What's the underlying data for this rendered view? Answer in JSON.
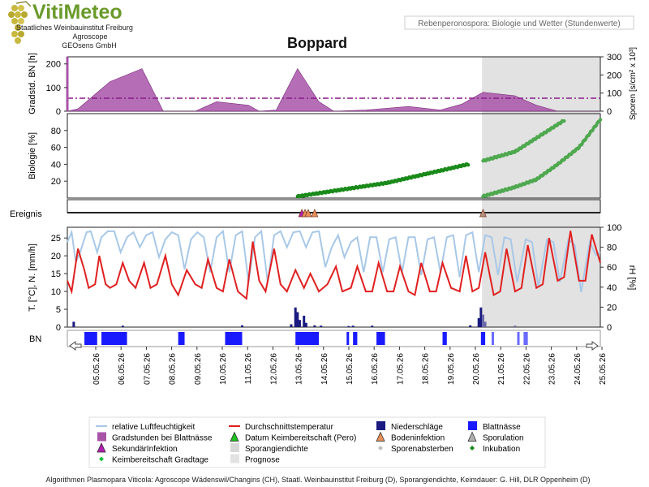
{
  "header": {
    "logo_title": "VitiMeteo",
    "institute_line1": "Staatliches Weinbauinstitut Freiburg",
    "institute_line2": "Agroscope",
    "institute_line3": "GEOsens GmbH",
    "subtitle_box": "Rebenperonospora: Biologie und Wetter (Stundenwerte)",
    "title": "Boppard"
  },
  "footer_credit": "Algorithmen Plasmopara Viticola: Agroscope Wädenswil/Changins (CH), Staatl. Weinbauinstitut Freiburg (D), Sporangiendichte, Keimdauer: G. Hill, DLR Oppenheim (D)",
  "colors": {
    "gradstunden": "#a855a8",
    "threshold": "#8a1a8a",
    "biology_green": "#1a8a1a",
    "biology_forecast_green": "#4fa84f",
    "temperature": "#e02020",
    "humidity": "#a8c8e8",
    "precip": "#1a1a80",
    "leaf_wetness": "#1a1aff",
    "prognose_shade": "#e2e2e2",
    "event_orange": "#e8905a",
    "event_grey": "#b89080"
  },
  "chart_data": [
    {
      "panel": "gradstunden",
      "type": "area",
      "ylabel": "Gradstd. BN [h]",
      "ylabel_right": "Sporen [s/cm² x 10³]",
      "ylim": [
        0,
        230
      ],
      "yticks": [
        0,
        100,
        200
      ],
      "ylim_right": [
        0,
        300
      ],
      "yticks_right": [
        0,
        100,
        200,
        300
      ],
      "threshold_line": 55,
      "points": [
        [
          0,
          0
        ],
        [
          0.5,
          10
        ],
        [
          2,
          125
        ],
        [
          3.5,
          180
        ],
        [
          4.5,
          0
        ],
        [
          6,
          0
        ],
        [
          7,
          40
        ],
        [
          8.5,
          25
        ],
        [
          9,
          0
        ],
        [
          9.8,
          5
        ],
        [
          10.8,
          180
        ],
        [
          11.8,
          40
        ],
        [
          12.5,
          0
        ],
        [
          14,
          5
        ],
        [
          16,
          20
        ],
        [
          17.5,
          5
        ],
        [
          18.5,
          30
        ],
        [
          19.5,
          80
        ],
        [
          21,
          65
        ],
        [
          22,
          25
        ],
        [
          23,
          0
        ],
        [
          24,
          0
        ],
        [
          25,
          0
        ]
      ]
    },
    {
      "panel": "biologie",
      "type": "scatter",
      "ylabel": "Biologie [%]",
      "ylim": [
        0,
        100
      ],
      "yticks": [
        20,
        40,
        60,
        80
      ],
      "series": [
        {
          "segment": [
            [
              10.8,
              2
            ],
            [
              15,
              18
            ],
            [
              18.8,
              40
            ]
          ]
        },
        {
          "segment": [
            [
              19.5,
              44
            ],
            [
              21,
              55
            ],
            [
              23.3,
              92
            ]
          ]
        },
        {
          "segment": [
            [
              19.5,
              2
            ],
            [
              21,
              13
            ],
            [
              22,
              22
            ],
            [
              23,
              40
            ],
            [
              24,
              60
            ],
            [
              25,
              93
            ]
          ]
        }
      ]
    },
    {
      "panel": "ereignis",
      "label": "Ereignis",
      "events": [
        {
          "x": 11.0,
          "type": "sekundaer"
        },
        {
          "x": 11.15,
          "type": "datum"
        },
        {
          "x": 11.3,
          "type": "boden"
        },
        {
          "x": 11.6,
          "type": "boden"
        },
        {
          "x": 19.5,
          "type": "boden"
        }
      ]
    },
    {
      "panel": "wetter",
      "type": "line",
      "ylabel": "T. [°C], N. [mm/h]",
      "ylabel_right": "rH [%]",
      "ylim": [
        0,
        28
      ],
      "yticks": [
        0,
        5,
        10,
        15,
        20,
        25
      ],
      "ylim_right": [
        0,
        100
      ],
      "yticks_right": [
        0,
        20,
        40,
        60,
        80,
        100
      ],
      "temperature": [
        [
          0,
          13
        ],
        [
          0.2,
          10
        ],
        [
          0.5,
          22
        ],
        [
          0.8,
          16
        ],
        [
          1,
          11
        ],
        [
          1.3,
          12
        ],
        [
          1.5,
          20
        ],
        [
          1.8,
          12
        ],
        [
          2,
          11
        ],
        [
          2.3,
          12
        ],
        [
          2.6,
          18
        ],
        [
          2.9,
          13
        ],
        [
          3.2,
          11
        ],
        [
          3.6,
          18
        ],
        [
          3.9,
          11
        ],
        [
          4.2,
          12
        ],
        [
          4.6,
          20
        ],
        [
          4.9,
          12
        ],
        [
          5.2,
          9
        ],
        [
          5.6,
          16
        ],
        [
          6,
          12
        ],
        [
          6.3,
          11
        ],
        [
          6.6,
          19
        ],
        [
          7,
          11
        ],
        [
          7.3,
          10
        ],
        [
          7.6,
          19
        ],
        [
          8,
          10
        ],
        [
          8.4,
          8
        ],
        [
          8.7,
          24
        ],
        [
          9,
          13
        ],
        [
          9.3,
          10
        ],
        [
          9.7,
          22
        ],
        [
          10,
          12
        ],
        [
          10.3,
          10
        ],
        [
          10.7,
          16
        ],
        [
          11.1,
          11
        ],
        [
          11.4,
          15
        ],
        [
          11.8,
          10
        ],
        [
          12.2,
          12
        ],
        [
          12.6,
          17
        ],
        [
          12.9,
          10
        ],
        [
          13.3,
          11
        ],
        [
          13.6,
          17
        ],
        [
          14,
          10
        ],
        [
          14.3,
          10
        ],
        [
          14.6,
          18
        ],
        [
          15,
          10
        ],
        [
          15.3,
          10
        ],
        [
          15.6,
          17
        ],
        [
          16,
          10
        ],
        [
          16.3,
          9
        ],
        [
          16.6,
          18
        ],
        [
          17,
          10
        ],
        [
          17.3,
          10
        ],
        [
          17.6,
          18
        ],
        [
          18,
          11
        ],
        [
          18.4,
          10
        ],
        [
          18.7,
          20
        ],
        [
          19,
          10
        ],
        [
          19.3,
          11
        ],
        [
          19.6,
          21
        ],
        [
          20,
          9
        ],
        [
          20.3,
          10
        ],
        [
          20.6,
          22
        ],
        [
          21,
          10
        ],
        [
          21.3,
          11
        ],
        [
          21.6,
          23
        ],
        [
          22,
          11
        ],
        [
          22.3,
          12
        ],
        [
          22.6,
          25
        ],
        [
          23,
          13
        ],
        [
          23.3,
          14
        ],
        [
          23.6,
          27
        ],
        [
          24,
          13
        ],
        [
          24.3,
          13
        ],
        [
          24.6,
          26
        ],
        [
          25,
          18
        ]
      ],
      "humidity": [
        [
          0,
          85
        ],
        [
          0.2,
          95
        ],
        [
          0.4,
          65
        ],
        [
          0.6,
          75
        ],
        [
          0.9,
          95
        ],
        [
          1.1,
          96
        ],
        [
          1.4,
          75
        ],
        [
          1.6,
          90
        ],
        [
          1.9,
          96
        ],
        [
          2.2,
          96
        ],
        [
          2.5,
          75
        ],
        [
          2.8,
          90
        ],
        [
          3.1,
          95
        ],
        [
          3.4,
          80
        ],
        [
          3.7,
          92
        ],
        [
          4,
          95
        ],
        [
          4.3,
          70
        ],
        [
          4.6,
          88
        ],
        [
          4.9,
          95
        ],
        [
          5.2,
          92
        ],
        [
          5.5,
          58
        ],
        [
          5.8,
          88
        ],
        [
          6.1,
          95
        ],
        [
          6.4,
          90
        ],
        [
          6.7,
          55
        ],
        [
          7,
          90
        ],
        [
          7.3,
          96
        ],
        [
          7.6,
          55
        ],
        [
          7.9,
          92
        ],
        [
          8.2,
          96
        ],
        [
          8.5,
          45
        ],
        [
          8.8,
          90
        ],
        [
          9.1,
          96
        ],
        [
          9.4,
          45
        ],
        [
          9.7,
          92
        ],
        [
          10,
          96
        ],
        [
          10.3,
          80
        ],
        [
          10.6,
          95
        ],
        [
          10.9,
          96
        ],
        [
          11.2,
          80
        ],
        [
          11.5,
          95
        ],
        [
          11.8,
          96
        ],
        [
          12.1,
          60
        ],
        [
          12.4,
          80
        ],
        [
          12.7,
          92
        ],
        [
          13,
          70
        ],
        [
          13.3,
          85
        ],
        [
          13.6,
          90
        ],
        [
          13.9,
          55
        ],
        [
          14.2,
          90
        ],
        [
          14.5,
          90
        ],
        [
          14.8,
          55
        ],
        [
          15.1,
          88
        ],
        [
          15.4,
          90
        ],
        [
          15.7,
          55
        ],
        [
          16,
          90
        ],
        [
          16.3,
          90
        ],
        [
          16.6,
          52
        ],
        [
          16.9,
          88
        ],
        [
          17.2,
          90
        ],
        [
          17.5,
          55
        ],
        [
          17.8,
          90
        ],
        [
          18.1,
          92
        ],
        [
          18.4,
          50
        ],
        [
          18.7,
          92
        ],
        [
          19,
          95
        ],
        [
          19.3,
          55
        ],
        [
          19.6,
          92
        ],
        [
          19.9,
          90
        ],
        [
          20.2,
          52
        ],
        [
          20.5,
          90
        ],
        [
          20.8,
          88
        ],
        [
          21.1,
          45
        ],
        [
          21.5,
          88
        ],
        [
          21.8,
          85
        ],
        [
          22.1,
          40
        ],
        [
          22.5,
          88
        ],
        [
          22.8,
          85
        ],
        [
          23.1,
          45
        ],
        [
          23.5,
          88
        ],
        [
          23.8,
          82
        ],
        [
          24.1,
          35
        ],
        [
          24.5,
          85
        ],
        [
          24.8,
          72
        ],
        [
          25,
          75
        ]
      ],
      "precip": [
        [
          0.3,
          1.5
        ],
        [
          2.6,
          0.4
        ],
        [
          8.2,
          0.5
        ],
        [
          10.5,
          0.8
        ],
        [
          10.7,
          5.5
        ],
        [
          10.8,
          4.2
        ],
        [
          10.9,
          2
        ],
        [
          11.1,
          3.2
        ],
        [
          11.2,
          1.2
        ],
        [
          11.6,
          0.5
        ],
        [
          11.9,
          0.4
        ],
        [
          13.2,
          0.3
        ],
        [
          13.4,
          0.4
        ],
        [
          14.3,
          0.4
        ],
        [
          18.9,
          0.5
        ],
        [
          19.3,
          2.5
        ],
        [
          19.4,
          5.5
        ],
        [
          19.5,
          3.5
        ],
        [
          19.6,
          1.5
        ],
        [
          21,
          0.4
        ]
      ]
    },
    {
      "panel": "blattnaesse",
      "label": "BN",
      "segments": [
        [
          0.8,
          1.4
        ],
        [
          1.6,
          2.8
        ],
        [
          5.2,
          5.5
        ],
        [
          7.4,
          8.2
        ],
        [
          10.7,
          11.8
        ],
        [
          13.1,
          13.2
        ],
        [
          13.4,
          13.6
        ],
        [
          14.5,
          14.9
        ],
        [
          17.6,
          17.8
        ],
        [
          19.4,
          19.6
        ],
        [
          19.9,
          20.0
        ],
        [
          21.1,
          21.2
        ],
        [
          21.4,
          21.6
        ]
      ]
    },
    {
      "panel": "x-axis",
      "prognose_start": 19.45,
      "tick_labels": [
        "05.05.26",
        "06.05.26",
        "07.05.26",
        "08.05.26",
        "09.05.26",
        "10.05.26",
        "11.05.26",
        "12.05.26",
        "13.05.26",
        "14.05.26",
        "15.05.26",
        "16.05.26",
        "17.05.26",
        "18.05.26",
        "19.05.26",
        "20.05.26",
        "21.05.26",
        "22.05.26",
        "23.05.26",
        "24.05.26",
        "25.05.26"
      ]
    }
  ],
  "legend": [
    {
      "label": "relative Luftfeuchtigkeit",
      "symbol": "line",
      "color": "#a8c8e8"
    },
    {
      "label": "Durchschnittstemperatur",
      "symbol": "line",
      "color": "#e02020"
    },
    {
      "label": "Niederschläge",
      "symbol": "square",
      "color": "#1a1a80"
    },
    {
      "label": "Blattnässe",
      "symbol": "square",
      "color": "#1a1aff"
    },
    {
      "label": "Gradstunden bei Blattnässe",
      "symbol": "square",
      "color": "#a855a8"
    },
    {
      "label": "Datum Keimbereitschaft (Pero)",
      "symbol": "triangle",
      "color": "#20c020"
    },
    {
      "label": "Bodeninfektion",
      "symbol": "triangle",
      "color": "#e8905a"
    },
    {
      "label": "Sporulation",
      "symbol": "triangle",
      "color": "#b0b0b0"
    },
    {
      "label": "SekundärInfektion",
      "symbol": "triangle",
      "color": "#b020b0"
    },
    {
      "label": "Sporangiendichte",
      "symbol": "square",
      "color": "#d8d8d8"
    },
    {
      "label": "Sporenabsterben",
      "symbol": "diamond",
      "color": "#c0c0c0"
    },
    {
      "label": "Inkubation",
      "symbol": "diamond",
      "color": "#1a8a1a"
    },
    {
      "label": "Keimbereitschaft Gradtage",
      "symbol": "diamond",
      "color": "#20c040"
    },
    {
      "label": "Prognose",
      "symbol": "square",
      "color": "#e2e2e2"
    }
  ]
}
